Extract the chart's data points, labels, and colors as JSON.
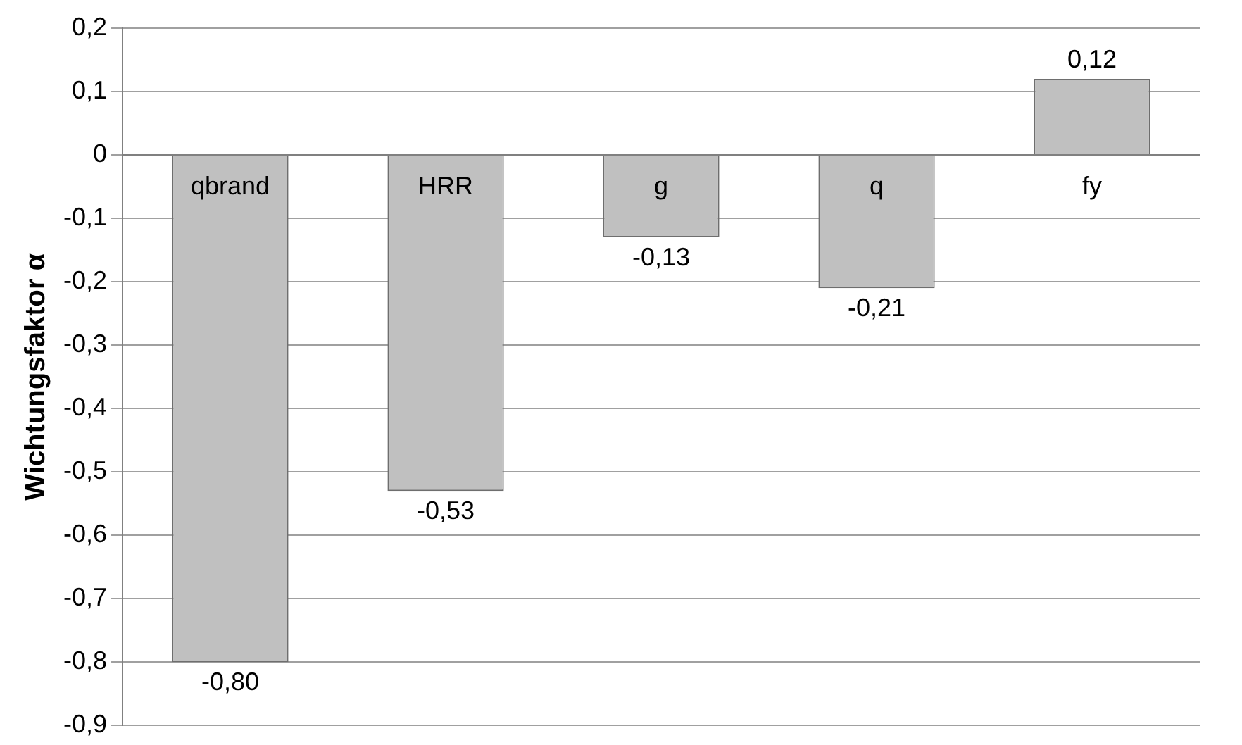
{
  "chart_data": {
    "type": "bar",
    "ylabel": "Wichtungsfaktor α",
    "categories": [
      "qbrand",
      "HRR",
      "g",
      "q",
      "fy"
    ],
    "values": [
      -0.8,
      -0.53,
      -0.13,
      -0.21,
      0.12
    ],
    "value_labels": [
      "-0,80",
      "-0,53",
      "-0,13",
      "-0,21",
      "0,12"
    ],
    "color": "#c0c0c0",
    "ylim": [
      -0.9,
      0.2
    ],
    "yticks": [
      {
        "value": -0.9,
        "label": "-0,9"
      },
      {
        "value": -0.8,
        "label": "-0,8"
      },
      {
        "value": -0.7,
        "label": "-0,7"
      },
      {
        "value": -0.6,
        "label": "-0,6"
      },
      {
        "value": -0.5,
        "label": "-0,5"
      },
      {
        "value": -0.4,
        "label": "-0,4"
      },
      {
        "value": -0.3,
        "label": "-0,3"
      },
      {
        "value": -0.2,
        "label": "-0,2"
      },
      {
        "value": -0.1,
        "label": "-0,1"
      },
      0,
      {
        "value": 0.1,
        "label": "0,1"
      },
      {
        "value": 0.2,
        "label": "0,2"
      }
    ],
    "grid": "y",
    "legend": false
  }
}
